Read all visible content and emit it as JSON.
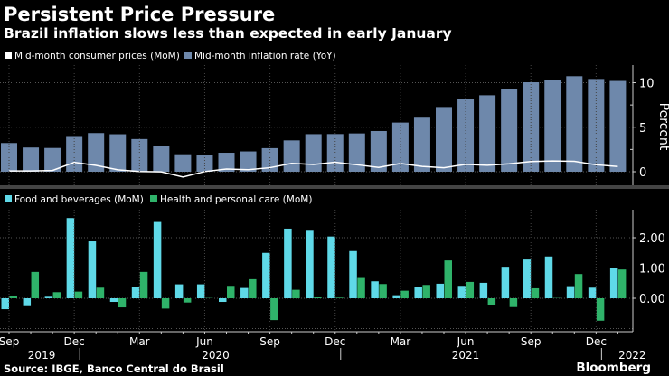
{
  "header": {
    "title": "Persistent Price Pressure",
    "subtitle": "Brazil inflation slows less than expected in early January"
  },
  "footer": {
    "source": "Source: IBGE, Banco Central do Brasil",
    "brand": "Bloomberg"
  },
  "chart_data": [
    {
      "type": "bar+line",
      "categories": [
        "Sep 2019",
        "Oct 2019",
        "Nov 2019",
        "Dec 2019",
        "Jan 2020",
        "Feb 2020",
        "Mar 2020",
        "Apr 2020",
        "May 2020",
        "Jun 2020",
        "Jul 2020",
        "Aug 2020",
        "Sep 2020",
        "Oct 2020",
        "Nov 2020",
        "Dec 2020",
        "Jan 2021",
        "Feb 2021",
        "Mar 2021",
        "Apr 2021",
        "May 2021",
        "Jun 2021",
        "Jul 2021",
        "Aug 2021",
        "Sep 2021",
        "Oct 2021",
        "Nov 2021",
        "Dec 2021",
        "Jan 2022"
      ],
      "series": [
        {
          "name": "Mid-month consumer prices (MoM)",
          "type": "line",
          "color": "#ffffff",
          "values": [
            0.09,
            0.09,
            0.14,
            1.05,
            0.71,
            0.22,
            0.02,
            -0.01,
            -0.59,
            0.02,
            0.3,
            0.23,
            0.45,
            0.94,
            0.81,
            1.06,
            0.78,
            0.48,
            0.93,
            0.6,
            0.44,
            0.83,
            0.72,
            0.89,
            1.14,
            1.2,
            1.17,
            0.78,
            0.58
          ]
        },
        {
          "name": "Mid-month inflation rate (YoY)",
          "type": "bar",
          "color": "#6e88ab",
          "values": [
            3.22,
            2.72,
            2.67,
            3.91,
            4.34,
            4.21,
            3.67,
            2.92,
            1.96,
            1.92,
            2.13,
            2.28,
            2.65,
            3.52,
            4.22,
            4.23,
            4.3,
            4.57,
            5.52,
            6.17,
            7.27,
            8.13,
            8.59,
            9.3,
            10.05,
            10.34,
            10.73,
            10.42,
            10.2
          ]
        }
      ],
      "ylabel": "Percent",
      "ylim": [
        -1.5,
        12
      ],
      "yticks": [
        "0",
        "5",
        "10"
      ],
      "grid": true,
      "legend": "top-left"
    },
    {
      "type": "bar",
      "categories": [
        "Sep 2019",
        "Oct 2019",
        "Nov 2019",
        "Dec 2019",
        "Jan 2020",
        "Feb 2020",
        "Mar 2020",
        "Apr 2020",
        "May 2020",
        "Jun 2020",
        "Jul 2020",
        "Aug 2020",
        "Sep 2020",
        "Oct 2020",
        "Nov 2020",
        "Dec 2020",
        "Jan 2021",
        "Feb 2021",
        "Mar 2021",
        "Apr 2021",
        "May 2021",
        "Jun 2021",
        "Jul 2021",
        "Aug 2021",
        "Sep 2021",
        "Oct 2021",
        "Nov 2021",
        "Dec 2021",
        "Jan 2022"
      ],
      "series": [
        {
          "name": "Food and beverages (MoM)",
          "color": "#5fd9e8",
          "values": [
            -0.36,
            -0.26,
            0.05,
            2.65,
            1.88,
            -0.12,
            0.36,
            2.52,
            0.46,
            0.46,
            -0.12,
            0.34,
            1.5,
            2.3,
            2.23,
            2.04,
            1.56,
            0.56,
            0.1,
            0.36,
            0.48,
            0.41,
            0.51,
            1.04,
            1.28,
            1.38,
            0.4,
            0.35,
            0.99
          ]
        },
        {
          "name": "Health and personal care (MoM)",
          "color": "#2fb36a",
          "values": [
            0.09,
            0.87,
            0.2,
            0.22,
            0.35,
            -0.3,
            0.87,
            -0.34,
            -0.14,
            0.01,
            0.41,
            0.63,
            -0.72,
            0.28,
            0.03,
            0.02,
            0.67,
            0.47,
            0.25,
            0.44,
            1.25,
            0.54,
            -0.23,
            -0.29,
            0.33,
            0.01,
            0.8,
            -0.74,
            0.95
          ]
        }
      ],
      "ylim": [
        -1,
        2.9
      ],
      "yticks": [
        "0.00",
        "1.00",
        "2.00"
      ],
      "grid": true,
      "legend": "top-left"
    }
  ],
  "xaxis": {
    "month_labels": [
      {
        "i": 0,
        "label": "Sep"
      },
      {
        "i": 3,
        "label": "Dec"
      },
      {
        "i": 6,
        "label": "Mar"
      },
      {
        "i": 9,
        "label": "Jun"
      },
      {
        "i": 12,
        "label": "Sep"
      },
      {
        "i": 15,
        "label": "Dec"
      },
      {
        "i": 18,
        "label": "Mar"
      },
      {
        "i": 21,
        "label": "Jun"
      },
      {
        "i": 24,
        "label": "Sep"
      },
      {
        "i": 27,
        "label": "Dec"
      }
    ],
    "year_labels": [
      {
        "i": 1.5,
        "label": "2019"
      },
      {
        "i": 9.5,
        "label": "2020"
      },
      {
        "i": 21,
        "label": "2021"
      },
      {
        "i": 28.5,
        "label": "2022"
      }
    ]
  }
}
